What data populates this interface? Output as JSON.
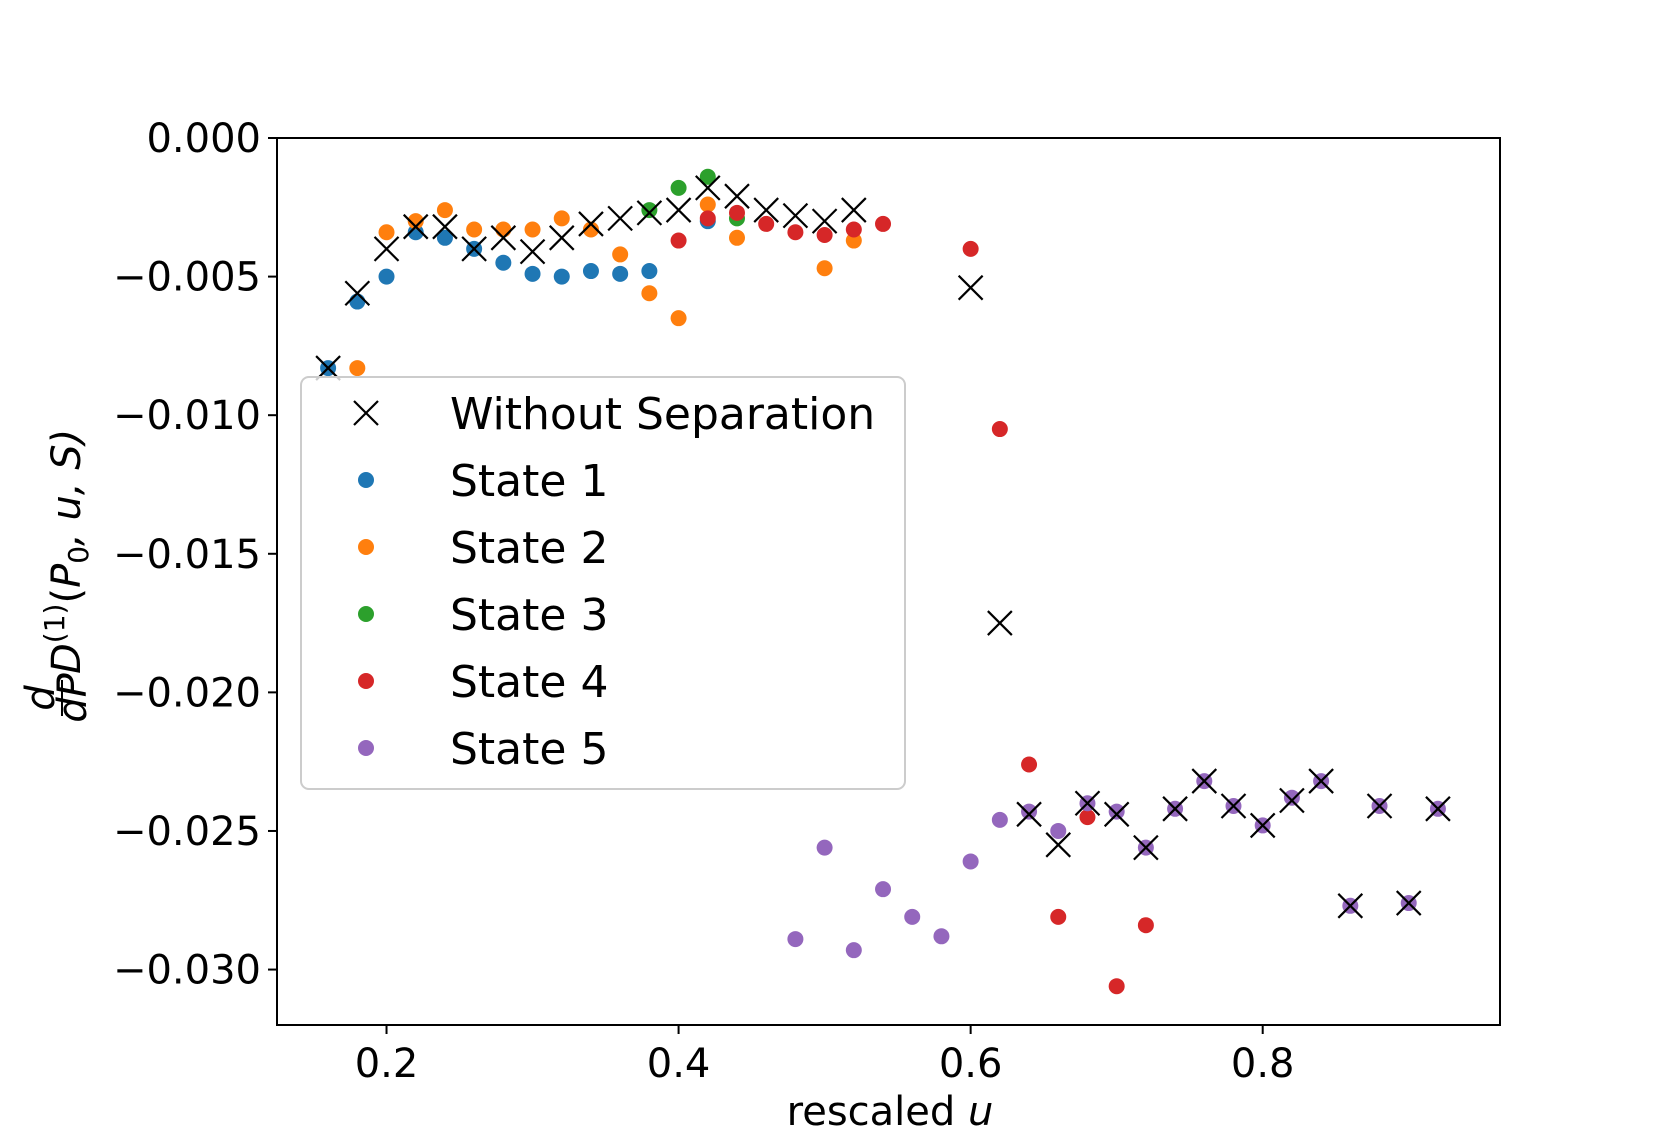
{
  "chart_data": {
    "type": "scatter",
    "title": "",
    "xlabel_text": "rescaled ",
    "xlabel_var": "u",
    "ylabel_frac_num": "d",
    "ylabel_frac_den": "dP",
    "ylabel_D": "D",
    "ylabel_sup": "(1)",
    "ylabel_args_open": "(",
    "ylabel_P": "P",
    "ylabel_sub": "0",
    "ylabel_rest": ", u, S)",
    "xlim": [
      0.125,
      0.9625
    ],
    "ylim": [
      -0.032,
      0.0
    ],
    "xticks": [
      0.2,
      0.4,
      0.6,
      0.8
    ],
    "xtick_labels": [
      "0.2",
      "0.4",
      "0.6",
      "0.8"
    ],
    "yticks": [
      0.0,
      -0.005,
      -0.01,
      -0.015,
      -0.02,
      -0.025,
      -0.03
    ],
    "ytick_labels": [
      "0.000",
      "−0.005",
      "−0.010",
      "−0.015",
      "−0.020",
      "−0.025",
      "−0.030"
    ],
    "legend_position": "center-left",
    "series": [
      {
        "name": "Without Separation",
        "marker": "x",
        "color": "#000000",
        "x": [
          0.16,
          0.18,
          0.2,
          0.22,
          0.24,
          0.26,
          0.28,
          0.3,
          0.32,
          0.34,
          0.36,
          0.38,
          0.4,
          0.42,
          0.44,
          0.46,
          0.48,
          0.5,
          0.52,
          0.6,
          0.62,
          0.64,
          0.66,
          0.68,
          0.7,
          0.72,
          0.74,
          0.76,
          0.78,
          0.8,
          0.82,
          0.84,
          0.86,
          0.88,
          0.9,
          0.92
        ],
        "y": [
          -0.0083,
          -0.0056,
          -0.004,
          -0.0032,
          -0.0032,
          -0.004,
          -0.0036,
          -0.0041,
          -0.0036,
          -0.0031,
          -0.0029,
          -0.0027,
          -0.0026,
          -0.0018,
          -0.0021,
          -0.0026,
          -0.0028,
          -0.003,
          -0.0026,
          -0.0054,
          -0.0175,
          -0.0244,
          -0.0255,
          -0.024,
          -0.0244,
          -0.0256,
          -0.0242,
          -0.0232,
          -0.0241,
          -0.0248,
          -0.0239,
          -0.0232,
          -0.0277,
          -0.0241,
          -0.0276,
          -0.0242
        ]
      },
      {
        "name": "State 1",
        "marker": "o",
        "color": "#1f77b4",
        "x": [
          0.16,
          0.18,
          0.2,
          0.22,
          0.24,
          0.26,
          0.28,
          0.3,
          0.32,
          0.34,
          0.36,
          0.38,
          0.42
        ],
        "y": [
          -0.0083,
          -0.0059,
          -0.005,
          -0.0034,
          -0.0036,
          -0.004,
          -0.0045,
          -0.0049,
          -0.005,
          -0.0048,
          -0.0049,
          -0.0048,
          -0.003
        ]
      },
      {
        "name": "State 2",
        "marker": "o",
        "color": "#ff7f0e",
        "x": [
          0.18,
          0.2,
          0.22,
          0.24,
          0.26,
          0.28,
          0.3,
          0.32,
          0.34,
          0.36,
          0.38,
          0.4,
          0.42,
          0.44,
          0.5,
          0.52
        ],
        "y": [
          -0.0083,
          -0.0034,
          -0.003,
          -0.0026,
          -0.0033,
          -0.0033,
          -0.0033,
          -0.0029,
          -0.0033,
          -0.0042,
          -0.0056,
          -0.0065,
          -0.0024,
          -0.0036,
          -0.0047,
          -0.0037
        ]
      },
      {
        "name": "State 3",
        "marker": "o",
        "color": "#2ca02c",
        "x": [
          0.38,
          0.4,
          0.42,
          0.44
        ],
        "y": [
          -0.0026,
          -0.0018,
          -0.0014,
          -0.0029
        ]
      },
      {
        "name": "State 4",
        "marker": "o",
        "color": "#d62728",
        "x": [
          0.4,
          0.42,
          0.44,
          0.46,
          0.48,
          0.5,
          0.52,
          0.54,
          0.6,
          0.62,
          0.64,
          0.66,
          0.68,
          0.7,
          0.72
        ],
        "y": [
          -0.0037,
          -0.0029,
          -0.0027,
          -0.0031,
          -0.0034,
          -0.0035,
          -0.0033,
          -0.0031,
          -0.004,
          -0.0105,
          -0.0226,
          -0.0281,
          -0.0245,
          -0.0306,
          -0.0284
        ]
      },
      {
        "name": "State 5",
        "marker": "o",
        "color": "#9467bd",
        "x": [
          0.48,
          0.5,
          0.52,
          0.54,
          0.56,
          0.58,
          0.6,
          0.62,
          0.64,
          0.66,
          0.68,
          0.7,
          0.72,
          0.74,
          0.76,
          0.78,
          0.8,
          0.82,
          0.84,
          0.86,
          0.88,
          0.9,
          0.92
        ],
        "y": [
          -0.0289,
          -0.0256,
          -0.0293,
          -0.0271,
          -0.0281,
          -0.0288,
          -0.0261,
          -0.0246,
          -0.0243,
          -0.025,
          -0.024,
          -0.0243,
          -0.0256,
          -0.0242,
          -0.0232,
          -0.0241,
          -0.0248,
          -0.0238,
          -0.0232,
          -0.0277,
          -0.0241,
          -0.0276,
          -0.0242
        ]
      }
    ]
  }
}
